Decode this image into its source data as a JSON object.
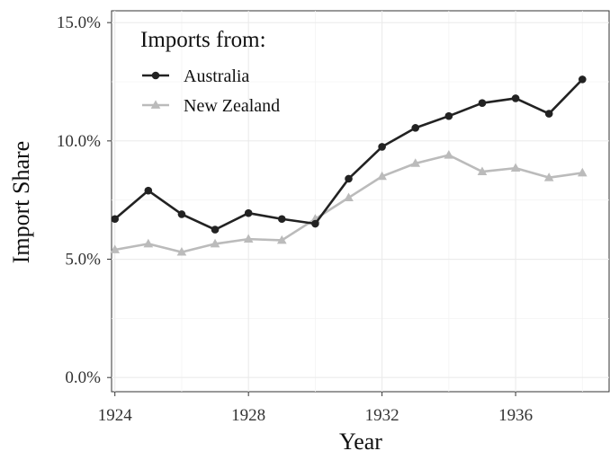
{
  "chart_data": {
    "type": "line",
    "xlabel": "Year",
    "ylabel": "Import Share",
    "x": [
      1924,
      1925,
      1926,
      1927,
      1928,
      1929,
      1930,
      1931,
      1932,
      1933,
      1934,
      1935,
      1936,
      1937,
      1938
    ],
    "xlim": [
      1923.9,
      1938.8
    ],
    "ylim": [
      -0.006,
      0.155
    ],
    "x_ticks": [
      1924,
      1928,
      1932,
      1936
    ],
    "x_tick_labels": [
      "1924",
      "1928",
      "1932",
      "1936"
    ],
    "y_ticks": [
      0.0,
      0.05,
      0.1,
      0.15
    ],
    "y_tick_labels": [
      "0.0%",
      "5.0%",
      "10.0%",
      "15.0%"
    ],
    "grid": true,
    "legend": {
      "title": "Imports from:",
      "placement": "top-left inside"
    },
    "series": [
      {
        "name": "Australia",
        "color": "#222222",
        "marker": "circle",
        "values": [
          0.067,
          0.079,
          0.069,
          0.0625,
          0.0695,
          0.067,
          0.065,
          0.084,
          0.0975,
          0.1055,
          0.1105,
          0.116,
          0.118,
          0.1115,
          0.126
        ]
      },
      {
        "name": "New Zealand",
        "color": "#bbbbbb",
        "marker": "triangle",
        "values": [
          0.054,
          0.0565,
          0.053,
          0.0565,
          0.0585,
          0.058,
          0.067,
          0.076,
          0.085,
          0.0905,
          0.094,
          0.087,
          0.0885,
          0.0845,
          0.0865
        ]
      }
    ]
  }
}
